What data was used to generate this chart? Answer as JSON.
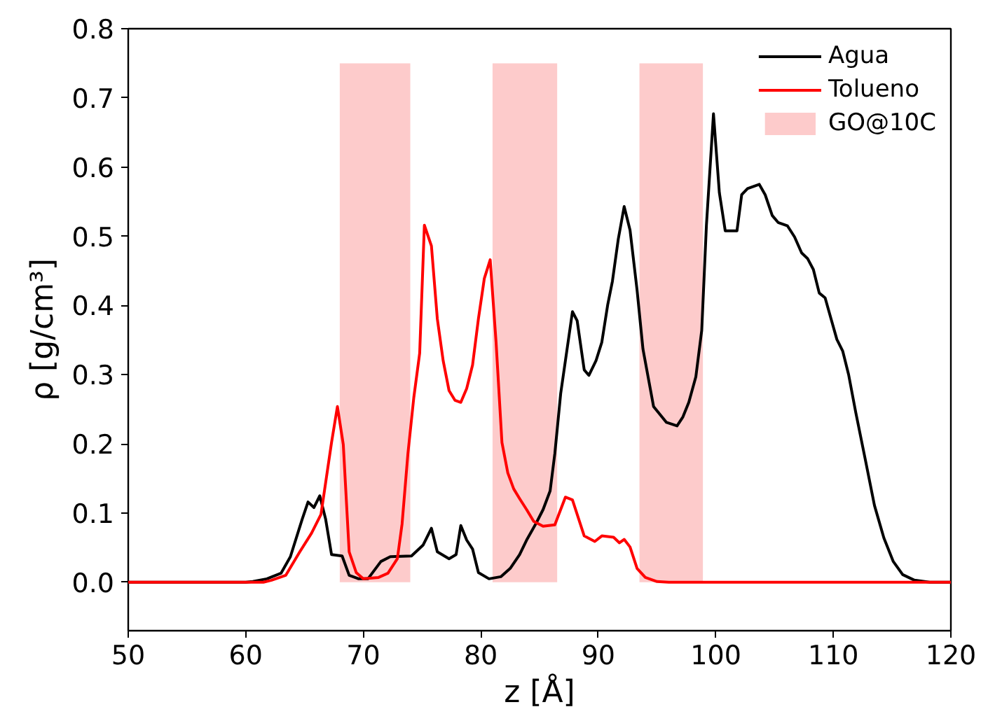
{
  "chart_data": {
    "type": "line",
    "xlabel": "z [Å]",
    "ylabel": "ρ [g/cm³]",
    "xlim": [
      50,
      120
    ],
    "ylim": [
      -0.07,
      0.8
    ],
    "xticks": [
      50,
      60,
      70,
      80,
      90,
      100,
      110,
      120
    ],
    "yticks": [
      {
        "value": 0,
        "label": "0.0"
      },
      {
        "value": 0.1,
        "label": "0.1"
      },
      {
        "value": 0.2,
        "label": "0.2"
      },
      {
        "value": 0.3,
        "label": "0.3"
      },
      {
        "value": 0.4,
        "label": "0.4"
      },
      {
        "value": 0.5,
        "label": "0.5"
      },
      {
        "value": 0.6,
        "label": "0.6"
      },
      {
        "value": 0.7,
        "label": "0.7"
      },
      {
        "value": 0.8,
        "label": "0.8"
      }
    ],
    "grid": false,
    "legend": "top right",
    "marker": "none",
    "line_style": "solid",
    "series": [
      {
        "name": "Agua",
        "color": "#000000",
        "x": [
          50,
          60,
          60.6,
          61.8,
          63.0,
          63.8,
          64.8,
          65.3,
          65.8,
          66.3,
          66.8,
          67.3,
          68.2,
          68.8,
          69.6,
          70.4,
          71.5,
          72.3,
          74.1,
          75.1,
          75.8,
          76.3,
          77.3,
          77.9,
          78.3,
          78.8,
          79.3,
          79.8,
          80.7,
          81.7,
          82.5,
          83.3,
          83.9,
          84.7,
          85.3,
          85.9,
          86.3,
          86.8,
          87.8,
          88.2,
          88.8,
          89.2,
          89.8,
          90.3,
          90.8,
          91.2,
          91.7,
          92.2,
          92.7,
          93.3,
          93.8,
          94.7,
          95.8,
          96.7,
          97.2,
          97.7,
          98.3,
          98.8,
          99.2,
          99.8,
          100.3,
          100.8,
          101.8,
          102.2,
          102.7,
          103.7,
          104.2,
          104.8,
          105.3,
          106.1,
          106.7,
          107.3,
          107.8,
          108.3,
          108.8,
          109.3,
          109.8,
          110.3,
          110.8,
          111.3,
          111.9,
          112.7,
          113.5,
          114.3,
          115.1,
          115.9,
          116.9,
          118.2,
          120
        ],
        "values": [
          0,
          0,
          0.001,
          0.005,
          0.013,
          0.037,
          0.091,
          0.116,
          0.108,
          0.125,
          0.091,
          0.04,
          0.038,
          0.01,
          0.005,
          0.005,
          0.03,
          0.037,
          0.038,
          0.054,
          0.078,
          0.044,
          0.034,
          0.04,
          0.082,
          0.061,
          0.048,
          0.014,
          0.005,
          0.008,
          0.02,
          0.04,
          0.061,
          0.085,
          0.105,
          0.132,
          0.186,
          0.273,
          0.391,
          0.378,
          0.307,
          0.299,
          0.32,
          0.347,
          0.401,
          0.435,
          0.496,
          0.543,
          0.509,
          0.422,
          0.337,
          0.254,
          0.231,
          0.226,
          0.239,
          0.26,
          0.297,
          0.364,
          0.516,
          0.677,
          0.563,
          0.508,
          0.508,
          0.56,
          0.569,
          0.575,
          0.56,
          0.53,
          0.52,
          0.515,
          0.499,
          0.476,
          0.468,
          0.452,
          0.418,
          0.411,
          0.381,
          0.351,
          0.334,
          0.3,
          0.246,
          0.179,
          0.111,
          0.064,
          0.03,
          0.011,
          0.003,
          0,
          0
        ]
      },
      {
        "name": "Tolueno",
        "color": "#ff0000",
        "x": [
          50,
          61.5,
          62.2,
          63.4,
          64.6,
          65.6,
          66.4,
          67.3,
          67.8,
          68.3,
          68.8,
          69.4,
          70.0,
          71.3,
          72.1,
          72.9,
          73.3,
          73.8,
          74.3,
          74.8,
          75.2,
          75.8,
          76.3,
          76.8,
          77.3,
          77.8,
          78.3,
          78.8,
          79.3,
          79.8,
          80.3,
          80.8,
          81.3,
          81.8,
          82.3,
          82.8,
          83.3,
          83.9,
          84.5,
          85.3,
          86.3,
          87.2,
          87.8,
          88.8,
          89.7,
          90.3,
          91.3,
          91.8,
          92.2,
          92.7,
          93.3,
          94.0,
          95.0,
          96.0,
          120
        ],
        "values": [
          0,
          0,
          0.003,
          0.01,
          0.044,
          0.071,
          0.098,
          0.202,
          0.254,
          0.199,
          0.044,
          0.014,
          0.005,
          0.007,
          0.013,
          0.034,
          0.084,
          0.186,
          0.267,
          0.331,
          0.516,
          0.486,
          0.381,
          0.32,
          0.277,
          0.263,
          0.26,
          0.28,
          0.314,
          0.381,
          0.439,
          0.466,
          0.347,
          0.202,
          0.158,
          0.135,
          0.121,
          0.105,
          0.088,
          0.081,
          0.083,
          0.123,
          0.119,
          0.067,
          0.059,
          0.067,
          0.065,
          0.057,
          0.062,
          0.051,
          0.02,
          0.007,
          0.001,
          0,
          0
        ]
      },
      {
        "name": "GO@10C",
        "type": "area",
        "color": "#fdcbcb",
        "x": [
          68.0,
          74.0,
          null,
          81.0,
          86.5,
          null,
          93.5,
          98.9
        ],
        "values": [
          0.75,
          0.75,
          null,
          0.75,
          0.75,
          null,
          0.75,
          0.75
        ]
      }
    ]
  }
}
